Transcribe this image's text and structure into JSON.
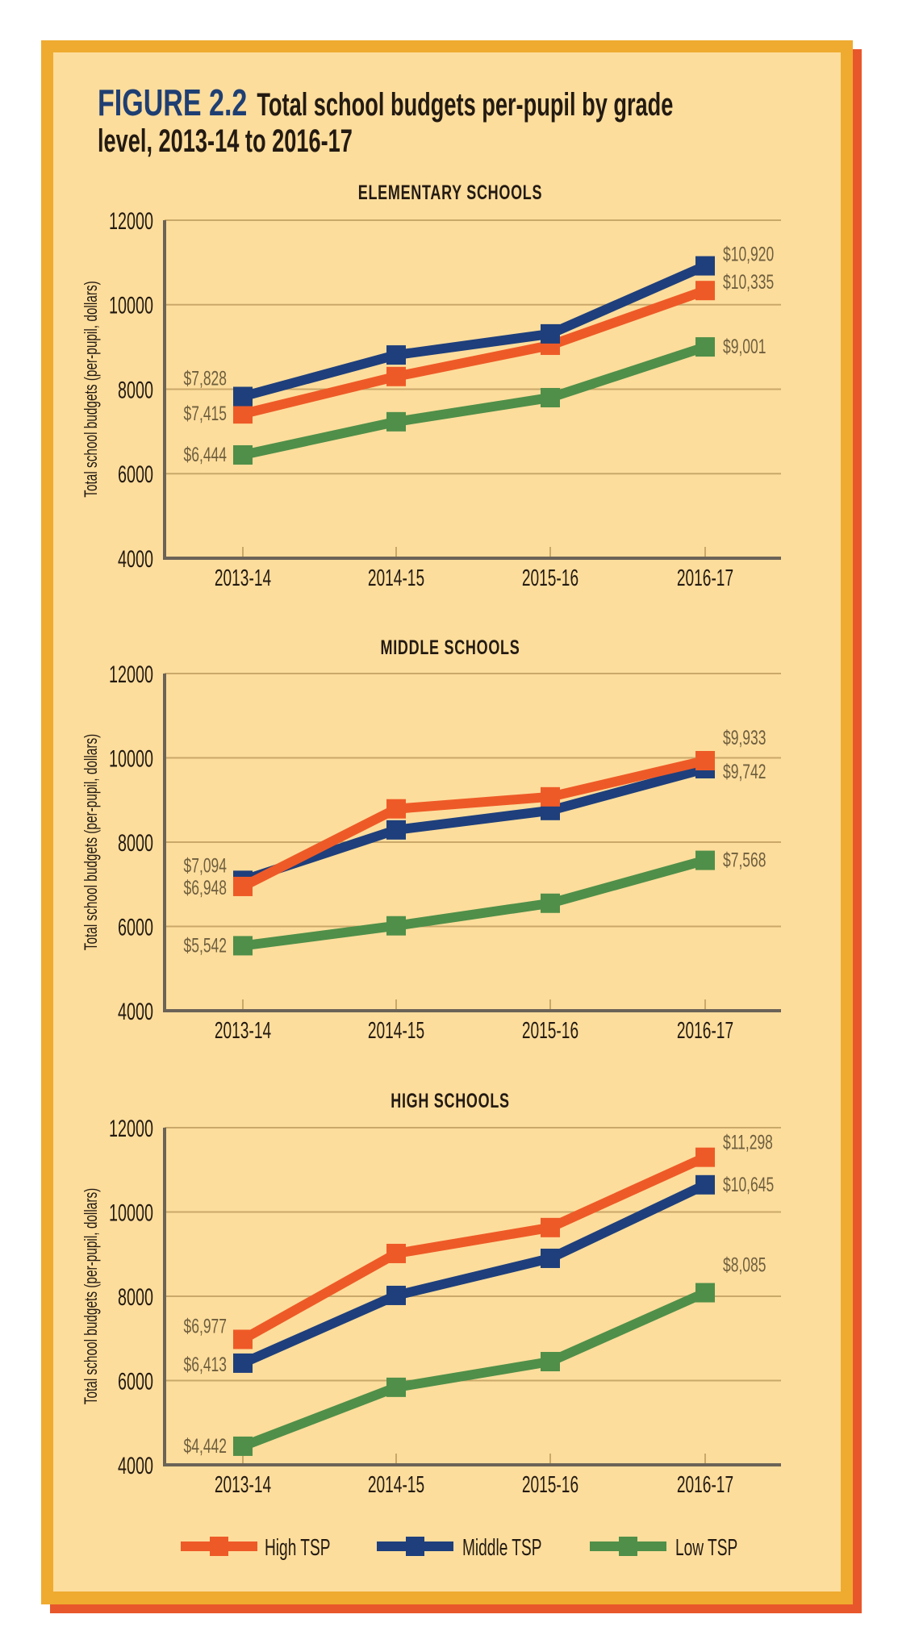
{
  "figure": {
    "label": "FIGURE 2.2",
    "title_line1": "Total school budgets per-pupil by grade",
    "title_line2": "level, 2013-14 to 2016-17"
  },
  "colors": {
    "high": "#ee5a27",
    "middle": "#1e3f7c",
    "low": "#4f8f49",
    "figure_label": "#1f3f73",
    "text": "#231a12",
    "value_label": "#6e5e3e",
    "grid": "#c9a86a",
    "axis": "#6b6358"
  },
  "legend": {
    "placement": "bottom-center",
    "items": [
      {
        "key": "high",
        "label": "High TSP"
      },
      {
        "key": "middle",
        "label": "Middle TSP"
      },
      {
        "key": "low",
        "label": "Low TSP"
      }
    ]
  },
  "chart_data": [
    {
      "type": "line",
      "title": "ELEMENTARY SCHOOLS",
      "xlabel": "",
      "ylabel": "Total school budgets (per-pupil, dollars)",
      "categories": [
        "2013-14",
        "2014-15",
        "2015-16",
        "2016-17"
      ],
      "ylim": [
        4000,
        12000
      ],
      "yticks": [
        "4000",
        "6000",
        "8000",
        "10000",
        "12000"
      ],
      "grid": true,
      "series": [
        {
          "name": "High TSP",
          "key": "high",
          "values": [
            7415,
            8300,
            9040,
            10335
          ],
          "labels": [
            "$7,415",
            "",
            "",
            "$10,335"
          ]
        },
        {
          "name": "Middle TSP",
          "key": "middle",
          "values": [
            7828,
            8810,
            9310,
            10920
          ],
          "labels": [
            "$7,828",
            "",
            "",
            "$10,920"
          ]
        },
        {
          "name": "Low TSP",
          "key": "low",
          "values": [
            6444,
            7230,
            7800,
            9001
          ],
          "labels": [
            "$6,444",
            "",
            "",
            "$9,001"
          ]
        }
      ]
    },
    {
      "type": "line",
      "title": "MIDDLE  SCHOOLS",
      "xlabel": "",
      "ylabel": "Total school budgets (per-pupil, dollars)",
      "categories": [
        "2013-14",
        "2014-15",
        "2015-16",
        "2016-17"
      ],
      "ylim": [
        4000,
        12000
      ],
      "yticks": [
        "4000",
        "6000",
        "8000",
        "10000",
        "12000"
      ],
      "grid": true,
      "series": [
        {
          "name": "High TSP",
          "key": "high",
          "values": [
            6948,
            8790,
            9075,
            9933
          ],
          "labels": [
            "$6,948",
            "",
            "",
            "$9,933"
          ]
        },
        {
          "name": "Middle TSP",
          "key": "middle",
          "values": [
            7094,
            8290,
            8750,
            9742
          ],
          "labels": [
            "$7,094",
            "",
            "",
            "$9,742"
          ]
        },
        {
          "name": "Low TSP",
          "key": "low",
          "values": [
            5542,
            6015,
            6550,
            7568
          ],
          "labels": [
            "$5,542",
            "",
            "",
            "$7,568"
          ]
        }
      ]
    },
    {
      "type": "line",
      "title": "HIGH SCHOOLS",
      "xlabel": "",
      "ylabel": "Total school budgets (per-pupil, dollars)",
      "categories": [
        "2013-14",
        "2014-15",
        "2015-16",
        "2016-17"
      ],
      "ylim": [
        4000,
        12000
      ],
      "yticks": [
        "4000",
        "6000",
        "8000",
        "10000",
        "12000"
      ],
      "grid": true,
      "series": [
        {
          "name": "High TSP",
          "key": "high",
          "values": [
            6977,
            9015,
            9630,
            11298
          ],
          "labels": [
            "$6,977",
            "",
            "",
            "$11,298"
          ]
        },
        {
          "name": "Middle TSP",
          "key": "middle",
          "values": [
            6413,
            8020,
            8900,
            10645
          ],
          "labels": [
            "$6,413",
            "",
            "",
            "$10,645"
          ]
        },
        {
          "name": "Low TSP",
          "key": "low",
          "values": [
            4442,
            5840,
            6450,
            8085
          ],
          "labels": [
            "$4,442",
            "",
            "",
            "$8,085"
          ]
        }
      ]
    }
  ]
}
